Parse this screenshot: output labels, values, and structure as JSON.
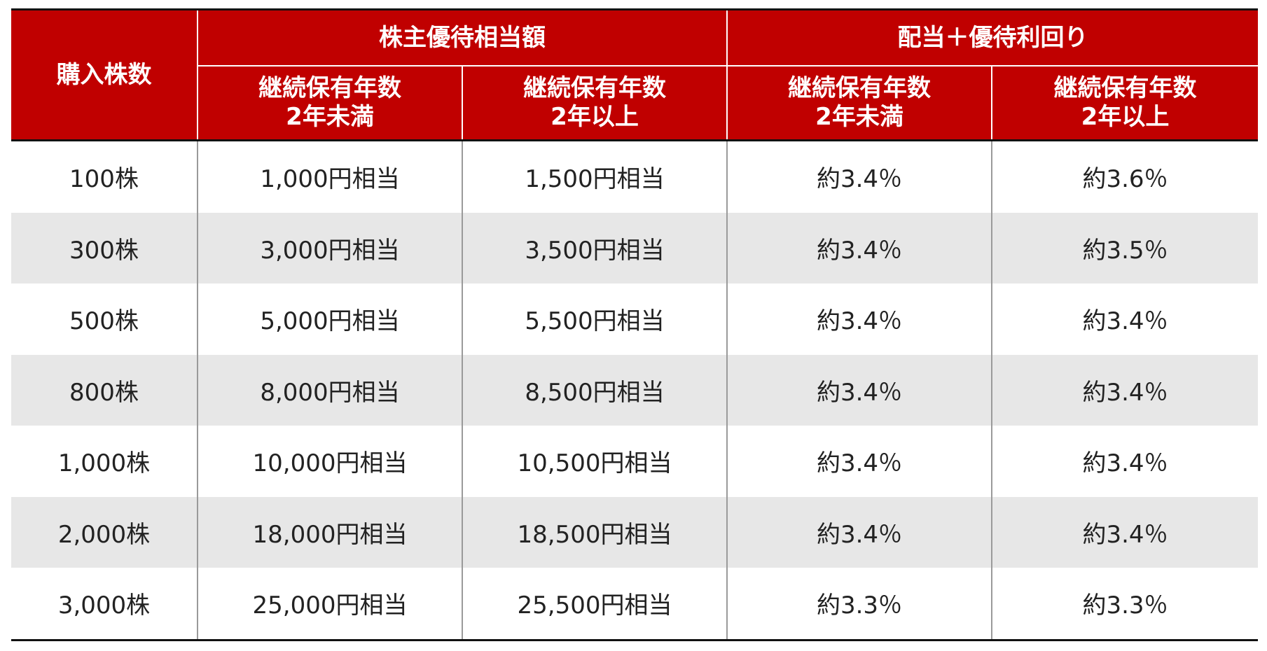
{
  "header": {
    "shares_label": "購入株数",
    "benefit_group": "株主優待相当額",
    "yield_group": "配当＋優待利回り",
    "sub_columns": [
      {
        "line1": "継続保有年数",
        "line2": "2年未満"
      },
      {
        "line1": "継続保有年数",
        "line2": "2年以上"
      },
      {
        "line1": "継続保有年数",
        "line2": "2年未満"
      },
      {
        "line1": "継続保有年数",
        "line2": "2年以上"
      }
    ]
  },
  "rows": [
    {
      "shares": "100株",
      "benefit_under2": "1,000円相当",
      "benefit_over2": "1,500円相当",
      "yield_under2": "約3.4％",
      "yield_over2": "約3.6％"
    },
    {
      "shares": "300株",
      "benefit_under2": "3,000円相当",
      "benefit_over2": "3,500円相当",
      "yield_under2": "約3.4％",
      "yield_over2": "約3.5％"
    },
    {
      "shares": "500株",
      "benefit_under2": "5,000円相当",
      "benefit_over2": "5,500円相当",
      "yield_under2": "約3.4％",
      "yield_over2": "約3.4％"
    },
    {
      "shares": "800株",
      "benefit_under2": "8,000円相当",
      "benefit_over2": "8,500円相当",
      "yield_under2": "約3.4％",
      "yield_over2": "約3.4％"
    },
    {
      "shares": "1,000株",
      "benefit_under2": "10,000円相当",
      "benefit_over2": "10,500円相当",
      "yield_under2": "約3.4％",
      "yield_over2": "約3.4％"
    },
    {
      "shares": "2,000株",
      "benefit_under2": "18,000円相当",
      "benefit_over2": "18,500円相当",
      "yield_under2": "約3.4％",
      "yield_over2": "約3.4％"
    },
    {
      "shares": "3,000株",
      "benefit_under2": "25,000円相当",
      "benefit_over2": "25,500円相当",
      "yield_under2": "約3.3％",
      "yield_over2": "約3.3％"
    }
  ],
  "colors": {
    "header_bg": "#c00000",
    "header_text": "#ffffff",
    "stripe_bg": "#e7e7e7"
  }
}
